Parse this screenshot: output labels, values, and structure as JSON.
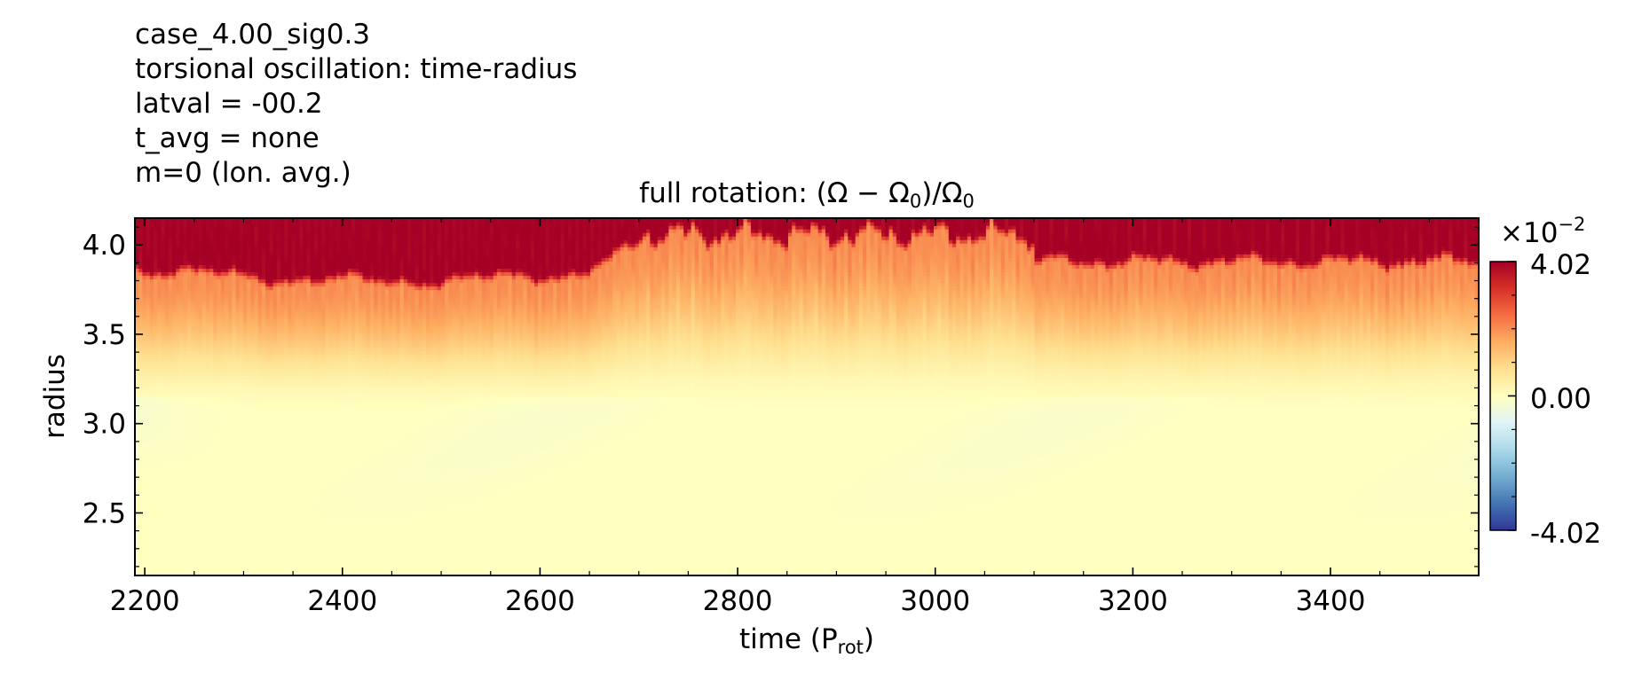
{
  "header_lines": [
    "case_4.00_sig0.3",
    "torsional oscillation: time-radius",
    "latval = -00.2",
    "t_avg = none",
    "m=0 (lon. avg.)"
  ],
  "chart_data": {
    "type": "heatmap",
    "title_parts": {
      "pre": "full rotation: (Ω − Ω",
      "sub1": "0",
      "mid": ")/Ω",
      "sub2": "0"
    },
    "xlabel_parts": {
      "main": "time (P",
      "sub": "rot",
      "post": ")"
    },
    "ylabel": "radius",
    "xlim": [
      2190,
      3550
    ],
    "ylim": [
      2.15,
      4.15
    ],
    "xticks": [
      2200,
      2400,
      2600,
      2800,
      3000,
      3200,
      3400
    ],
    "xtick_labels": [
      "2200",
      "2400",
      "2600",
      "2800",
      "3000",
      "3200",
      "3400"
    ],
    "yticks": [
      2.5,
      3.0,
      3.5,
      4.0
    ],
    "ytick_labels": [
      "2.5",
      "3.0",
      "3.5",
      "4.0"
    ],
    "colormap": "RdYlBu_r",
    "colorbar": {
      "min": -0.0402,
      "max": 0.0402,
      "tick_labels": [
        "4.02",
        "0.00",
        "-4.02"
      ],
      "multiplier_base": "×10",
      "multiplier_exp": "−2"
    },
    "field_summary": {
      "saturated_top_band_radius_ranges": [
        {
          "x": [
            2190,
            2700
          ],
          "r_min": 3.82
        },
        {
          "x": [
            2700,
            3100
          ],
          "r_min": 4.05
        },
        {
          "x": [
            3100,
            3550
          ],
          "r_min": 3.88
        }
      ],
      "near_zero_region_below_radius": 3.1
    }
  }
}
